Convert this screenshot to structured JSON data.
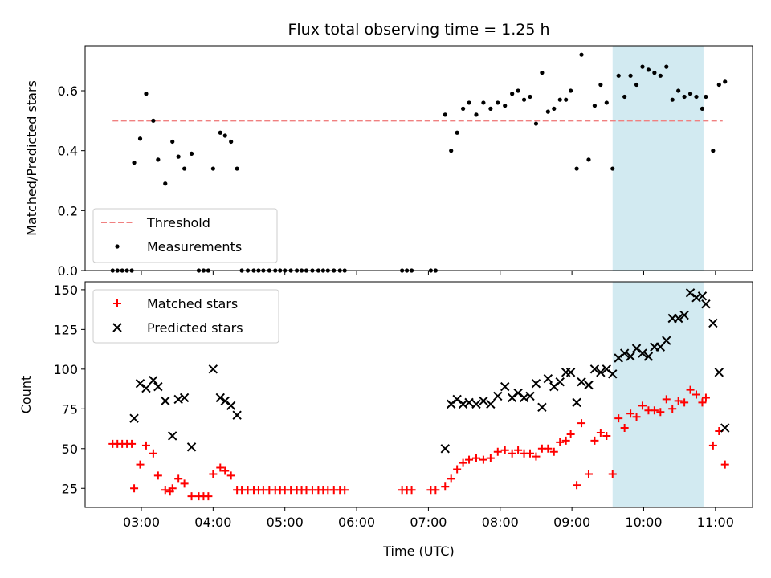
{
  "chart_data": [
    {
      "type": "scatter",
      "title": "Flux total observing time = 1.25 h",
      "xlabel": "",
      "ylabel": "Matched/Predicted stars",
      "xlim": [
        "02:13",
        "11:31"
      ],
      "ylim": [
        0,
        0.75
      ],
      "x_ticks": [
        "03:00",
        "04:00",
        "05:00",
        "06:00",
        "07:00",
        "08:00",
        "09:00",
        "10:00",
        "11:00"
      ],
      "y_ticks": [
        0.0,
        0.2,
        0.4,
        0.6
      ],
      "legend_position": "lower-left",
      "shaded_span": {
        "x": [
          "09:34",
          "10:50"
        ],
        "color": "#add8e6"
      },
      "threshold": {
        "name": "Threshold",
        "y": 0.5,
        "x": [
          "02:36",
          "11:06"
        ],
        "color": "#f08080",
        "style": "dashed"
      },
      "series": [
        {
          "name": "Measurements",
          "marker": "dot",
          "color": "#000000",
          "points": [
            [
              "02:36",
              0
            ],
            [
              "02:40",
              0
            ],
            [
              "02:44",
              0
            ],
            [
              "02:48",
              0
            ],
            [
              "02:52",
              0
            ],
            [
              "02:54",
              0.36
            ],
            [
              "02:59",
              0.44
            ],
            [
              "03:04",
              0.59
            ],
            [
              "03:10",
              0.5
            ],
            [
              "03:14",
              0.37
            ],
            [
              "03:20",
              0.29
            ],
            [
              "03:26",
              0.43
            ],
            [
              "03:31",
              0.38
            ],
            [
              "03:36",
              0.34
            ],
            [
              "03:42",
              0.39
            ],
            [
              "03:48",
              0
            ],
            [
              "03:52",
              0
            ],
            [
              "03:56",
              0
            ],
            [
              "04:00",
              0.34
            ],
            [
              "04:06",
              0.46
            ],
            [
              "04:10",
              0.45
            ],
            [
              "04:15",
              0.43
            ],
            [
              "04:20",
              0.34
            ],
            [
              "04:24",
              0
            ],
            [
              "04:29",
              0
            ],
            [
              "04:34",
              0
            ],
            [
              "04:38",
              0
            ],
            [
              "04:42",
              0
            ],
            [
              "04:47",
              0
            ],
            [
              "04:52",
              0
            ],
            [
              "04:56",
              0
            ],
            [
              "05:00",
              0
            ],
            [
              "05:05",
              0
            ],
            [
              "05:10",
              0
            ],
            [
              "05:14",
              0
            ],
            [
              "05:18",
              0
            ],
            [
              "05:23",
              0
            ],
            [
              "05:28",
              0
            ],
            [
              "05:32",
              0
            ],
            [
              "05:36",
              0
            ],
            [
              "05:41",
              0
            ],
            [
              "05:46",
              0
            ],
            [
              "05:50",
              0
            ],
            [
              "06:38",
              0
            ],
            [
              "06:42",
              0
            ],
            [
              "06:46",
              0
            ],
            [
              "07:02",
              0
            ],
            [
              "07:06",
              0
            ],
            [
              "07:14",
              0.52
            ],
            [
              "07:19",
              0.4
            ],
            [
              "07:24",
              0.46
            ],
            [
              "07:29",
              0.54
            ],
            [
              "07:34",
              0.56
            ],
            [
              "07:40",
              0.52
            ],
            [
              "07:46",
              0.56
            ],
            [
              "07:52",
              0.54
            ],
            [
              "07:58",
              0.56
            ],
            [
              "08:04",
              0.55
            ],
            [
              "08:10",
              0.59
            ],
            [
              "08:15",
              0.6
            ],
            [
              "08:20",
              0.57
            ],
            [
              "08:25",
              0.58
            ],
            [
              "08:30",
              0.49
            ],
            [
              "08:35",
              0.66
            ],
            [
              "08:40",
              0.53
            ],
            [
              "08:45",
              0.54
            ],
            [
              "08:50",
              0.57
            ],
            [
              "08:55",
              0.57
            ],
            [
              "08:59",
              0.6
            ],
            [
              "09:04",
              0.34
            ],
            [
              "09:08",
              0.72
            ],
            [
              "09:14",
              0.37
            ],
            [
              "09:19",
              0.55
            ],
            [
              "09:24",
              0.62
            ],
            [
              "09:29",
              0.56
            ],
            [
              "09:34",
              0.34
            ],
            [
              "09:39",
              0.65
            ],
            [
              "09:44",
              0.58
            ],
            [
              "09:49",
              0.65
            ],
            [
              "09:54",
              0.62
            ],
            [
              "09:59",
              0.68
            ],
            [
              "10:04",
              0.67
            ],
            [
              "10:09",
              0.66
            ],
            [
              "10:14",
              0.65
            ],
            [
              "10:19",
              0.68
            ],
            [
              "10:24",
              0.57
            ],
            [
              "10:29",
              0.6
            ],
            [
              "10:34",
              0.58
            ],
            [
              "10:39",
              0.59
            ],
            [
              "10:44",
              0.58
            ],
            [
              "10:49",
              0.54
            ],
            [
              "10:52",
              0.58
            ],
            [
              "10:58",
              0.4
            ],
            [
              "11:03",
              0.62
            ],
            [
              "11:08",
              0.63
            ]
          ]
        }
      ]
    },
    {
      "type": "scatter",
      "title": "",
      "xlabel": "Time (UTC)",
      "ylabel": "Count",
      "xlim": [
        "02:13",
        "11:31"
      ],
      "ylim": [
        13,
        155
      ],
      "x_ticks": [
        "03:00",
        "04:00",
        "05:00",
        "06:00",
        "07:00",
        "08:00",
        "09:00",
        "10:00",
        "11:00"
      ],
      "y_ticks": [
        25,
        50,
        75,
        100,
        125,
        150
      ],
      "legend_position": "upper-left",
      "shaded_span": {
        "x": [
          "09:34",
          "10:50"
        ],
        "color": "#add8e6"
      },
      "series": [
        {
          "name": "Matched stars",
          "marker": "plus",
          "color": "#ff0000",
          "points": [
            [
              "02:36",
              53
            ],
            [
              "02:40",
              53
            ],
            [
              "02:44",
              53
            ],
            [
              "02:48",
              53
            ],
            [
              "02:52",
              53
            ],
            [
              "02:54",
              25
            ],
            [
              "02:59",
              40
            ],
            [
              "03:04",
              52
            ],
            [
              "03:10",
              47
            ],
            [
              "03:14",
              33
            ],
            [
              "03:20",
              24
            ],
            [
              "03:24",
              23
            ],
            [
              "03:26",
              25
            ],
            [
              "03:31",
              31
            ],
            [
              "03:36",
              28
            ],
            [
              "03:42",
              20
            ],
            [
              "03:48",
              20
            ],
            [
              "03:52",
              20
            ],
            [
              "03:56",
              20
            ],
            [
              "04:00",
              34
            ],
            [
              "04:06",
              38
            ],
            [
              "04:10",
              36
            ],
            [
              "04:15",
              33
            ],
            [
              "04:20",
              24
            ],
            [
              "04:24",
              24
            ],
            [
              "04:29",
              24
            ],
            [
              "04:34",
              24
            ],
            [
              "04:38",
              24
            ],
            [
              "04:42",
              24
            ],
            [
              "04:47",
              24
            ],
            [
              "04:52",
              24
            ],
            [
              "04:56",
              24
            ],
            [
              "05:00",
              24
            ],
            [
              "05:05",
              24
            ],
            [
              "05:10",
              24
            ],
            [
              "05:14",
              24
            ],
            [
              "05:18",
              24
            ],
            [
              "05:23",
              24
            ],
            [
              "05:28",
              24
            ],
            [
              "05:32",
              24
            ],
            [
              "05:36",
              24
            ],
            [
              "05:41",
              24
            ],
            [
              "05:46",
              24
            ],
            [
              "05:50",
              24
            ],
            [
              "06:38",
              24
            ],
            [
              "06:42",
              24
            ],
            [
              "06:46",
              24
            ],
            [
              "07:02",
              24
            ],
            [
              "07:06",
              24
            ],
            [
              "07:14",
              26
            ],
            [
              "07:19",
              31
            ],
            [
              "07:24",
              37
            ],
            [
              "07:29",
              41
            ],
            [
              "07:34",
              43
            ],
            [
              "07:40",
              44
            ],
            [
              "07:46",
              43
            ],
            [
              "07:52",
              44
            ],
            [
              "07:58",
              48
            ],
            [
              "08:04",
              49
            ],
            [
              "08:10",
              47
            ],
            [
              "08:15",
              49
            ],
            [
              "08:20",
              47
            ],
            [
              "08:25",
              47
            ],
            [
              "08:30",
              45
            ],
            [
              "08:35",
              50
            ],
            [
              "08:40",
              50
            ],
            [
              "08:45",
              48
            ],
            [
              "08:50",
              54
            ],
            [
              "08:55",
              55
            ],
            [
              "08:59",
              59
            ],
            [
              "09:04",
              27
            ],
            [
              "09:08",
              66
            ],
            [
              "09:14",
              34
            ],
            [
              "09:19",
              55
            ],
            [
              "09:24",
              60
            ],
            [
              "09:29",
              58
            ],
            [
              "09:34",
              34
            ],
            [
              "09:39",
              69
            ],
            [
              "09:44",
              63
            ],
            [
              "09:49",
              72
            ],
            [
              "09:54",
              70
            ],
            [
              "09:59",
              77
            ],
            [
              "10:04",
              74
            ],
            [
              "10:09",
              74
            ],
            [
              "10:14",
              73
            ],
            [
              "10:19",
              81
            ],
            [
              "10:24",
              75
            ],
            [
              "10:29",
              80
            ],
            [
              "10:34",
              79
            ],
            [
              "10:39",
              87
            ],
            [
              "10:44",
              84
            ],
            [
              "10:49",
              79
            ],
            [
              "10:52",
              82
            ],
            [
              "10:58",
              52
            ],
            [
              "11:03",
              61
            ],
            [
              "11:08",
              40
            ]
          ]
        },
        {
          "name": "Predicted stars",
          "marker": "x",
          "color": "#000000",
          "points": [
            [
              "02:54",
              69
            ],
            [
              "02:59",
              91
            ],
            [
              "03:04",
              88
            ],
            [
              "03:10",
              93
            ],
            [
              "03:14",
              89
            ],
            [
              "03:20",
              80
            ],
            [
              "03:26",
              58
            ],
            [
              "03:31",
              81
            ],
            [
              "03:36",
              82
            ],
            [
              "03:42",
              51
            ],
            [
              "04:00",
              100
            ],
            [
              "04:06",
              82
            ],
            [
              "04:10",
              80
            ],
            [
              "04:15",
              77
            ],
            [
              "04:20",
              71
            ],
            [
              "07:14",
              50
            ],
            [
              "07:19",
              78
            ],
            [
              "07:24",
              81
            ],
            [
              "07:29",
              78
            ],
            [
              "07:34",
              79
            ],
            [
              "07:40",
              78
            ],
            [
              "07:46",
              80
            ],
            [
              "07:52",
              78
            ],
            [
              "07:58",
              83
            ],
            [
              "08:04",
              89
            ],
            [
              "08:10",
              82
            ],
            [
              "08:15",
              85
            ],
            [
              "08:20",
              82
            ],
            [
              "08:25",
              83
            ],
            [
              "08:30",
              91
            ],
            [
              "08:35",
              76
            ],
            [
              "08:40",
              94
            ],
            [
              "08:45",
              89
            ],
            [
              "08:50",
              92
            ],
            [
              "08:55",
              98
            ],
            [
              "08:59",
              98
            ],
            [
              "09:04",
              79
            ],
            [
              "09:08",
              92
            ],
            [
              "09:14",
              90
            ],
            [
              "09:19",
              100
            ],
            [
              "09:24",
              98
            ],
            [
              "09:29",
              100
            ],
            [
              "09:34",
              97
            ],
            [
              "09:39",
              107
            ],
            [
              "09:44",
              110
            ],
            [
              "09:49",
              108
            ],
            [
              "09:54",
              113
            ],
            [
              "09:59",
              110
            ],
            [
              "10:04",
              108
            ],
            [
              "10:09",
              114
            ],
            [
              "10:14",
              114
            ],
            [
              "10:19",
              118
            ],
            [
              "10:24",
              132
            ],
            [
              "10:29",
              132
            ],
            [
              "10:34",
              134
            ],
            [
              "10:39",
              148
            ],
            [
              "10:44",
              145
            ],
            [
              "10:49",
              146
            ],
            [
              "10:52",
              141
            ],
            [
              "10:58",
              129
            ],
            [
              "11:03",
              98
            ],
            [
              "11:08",
              63
            ]
          ]
        }
      ]
    }
  ]
}
